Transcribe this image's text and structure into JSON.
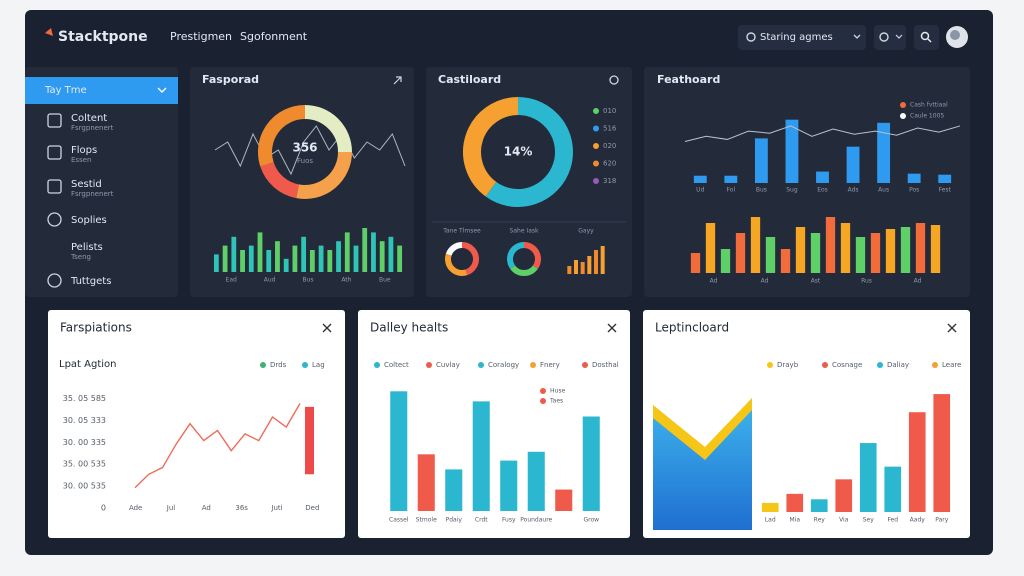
{
  "header": {
    "brand": "Stacktpone",
    "nav": [
      "Prestigmen",
      "Sgofonment"
    ],
    "search": "Staring agmes"
  },
  "sidebar": {
    "dropdown": "Tay Tme",
    "items": [
      {
        "label": "Coltent",
        "sub": "Fsrgpnenert"
      },
      {
        "label": "Flops",
        "sub": "Essen"
      },
      {
        "label": "Sestid",
        "sub": "Fsrgpnenert"
      },
      {
        "label": "Soplies"
      },
      {
        "label": "Pelists",
        "sub": "Tseng"
      },
      {
        "label": "Tuttgets"
      }
    ]
  },
  "top_panels": [
    {
      "title": "Fasporad",
      "donut": {
        "center": "356",
        "sub": "Fuos",
        "values": [
          25,
          28,
          17,
          30
        ],
        "colors": [
          "#e4ecc4",
          "#f5a04a",
          "#ef5a4a",
          "#f08a2e"
        ]
      },
      "line": {
        "values": [
          5,
          6,
          3,
          7,
          4,
          5,
          2,
          6,
          8,
          5,
          7,
          4,
          6,
          5,
          7,
          3
        ],
        "ylim": [
          0,
          10
        ]
      },
      "bars": {
        "values": [
          4,
          6,
          8,
          5,
          6,
          9,
          5,
          7,
          3,
          6,
          8,
          5,
          6,
          5,
          7,
          9,
          6,
          10,
          9,
          7,
          8,
          6
        ],
        "colors": [
          "#2ec4b6",
          "#5fd068"
        ],
        "ylim": [
          0,
          10
        ],
        "xlabels": [
          "Ead",
          "Aud",
          "Bus",
          "Ath",
          "Bue"
        ]
      }
    },
    {
      "title": "Castiloard",
      "donut": {
        "center": "14%",
        "values": [
          60,
          40
        ],
        "colors": [
          "#2bb7d0",
          "#f5a030"
        ]
      },
      "legend": [
        {
          "name": "010",
          "color": "#5fd068"
        },
        {
          "name": "516",
          "color": "#2f9bf0"
        },
        {
          "name": "020",
          "color": "#f5a030"
        },
        {
          "name": "620",
          "color": "#f08a2e"
        },
        {
          "name": "318",
          "color": "#9b59b6"
        }
      ],
      "minis": [
        {
          "type": "donut",
          "title": "Tane Tlmsee",
          "values": [
            45,
            35,
            20
          ],
          "colors": [
            "#ef5a4a",
            "#f5a030",
            "#ffffff"
          ]
        },
        {
          "type": "donut",
          "title": "Sahe Iask",
          "values": [
            35,
            30,
            35
          ],
          "colors": [
            "#ef5a4a",
            "#5fd068",
            "#2bb7d0"
          ]
        },
        {
          "type": "bar",
          "title": "Gayy",
          "values": [
            4,
            7,
            6,
            9,
            12,
            14
          ],
          "colors": [
            "#f08a2e",
            "#f5a030"
          ],
          "ylim": [
            0,
            15
          ]
        }
      ]
    },
    {
      "title": "Feathoard",
      "legend": [
        {
          "name": "Cash fvttiaal",
          "color": "#f26b3a"
        },
        {
          "name": "Caule 1005",
          "color": "#ffffff"
        }
      ],
      "bars": {
        "values": [
          7,
          7,
          43,
          61,
          11,
          35,
          58,
          9,
          8
        ],
        "colors": [
          "#2f9bf0"
        ],
        "ylim": [
          0,
          80
        ],
        "xlabels": [
          "Ud",
          "Fol",
          "Bus",
          "Sug",
          "Eos",
          "Ads",
          "Aus",
          "Pos",
          "Fest"
        ]
      },
      "line": {
        "values": [
          40,
          45,
          42,
          50,
          48,
          55,
          45,
          52,
          47,
          50,
          46,
          53,
          49,
          55
        ],
        "ylim": [
          0,
          80
        ]
      },
      "bars2": {
        "values": [
          10,
          25,
          12,
          20,
          28,
          18,
          12,
          23,
          20,
          28,
          25,
          18,
          20,
          22,
          23,
          25,
          24
        ],
        "colors": [
          "#f26b3a",
          "#f5a623",
          "#5fd068"
        ],
        "ylim": [
          0,
          30
        ],
        "xlabels": [
          "Ad",
          "Ad",
          "Ast",
          "Rus",
          "Ad"
        ]
      }
    }
  ],
  "bottom_panels": [
    {
      "title": "Farspiations",
      "subtitle": "Lpat Agtion",
      "legend": [
        {
          "name": "Drds",
          "color": "#3cb371"
        },
        {
          "name": "Lag",
          "color": "#2bb7d0"
        }
      ],
      "chart": {
        "values": [
          12,
          20,
          24,
          38,
          50,
          40,
          46,
          34,
          44,
          40,
          54,
          48,
          62
        ],
        "highlight": [
          20,
          60
        ],
        "ylim": [
          0,
          70
        ],
        "yticks": [
          {
            "value": 65,
            "label": "35. 05 585"
          },
          {
            "value": 52,
            "label": "30. 05 333"
          },
          {
            "value": 39,
            "label": "30. 00 335"
          },
          {
            "value": 26,
            "label": "35. 00 535"
          },
          {
            "value": 13,
            "label": "30. 00 535"
          },
          0
        ],
        "xlabels": [
          "Ade",
          "Jul",
          "Ad",
          "36s",
          "Juti",
          "Ded"
        ]
      }
    },
    {
      "title": "Dalley healts",
      "legend": [
        {
          "name": "Coltect",
          "color": "#2bb7d0"
        },
        {
          "name": "Cuvlay",
          "color": "#ef5a4a"
        },
        {
          "name": "Coralogy",
          "color": "#2bb7d0"
        },
        {
          "name": "Fnery",
          "color": "#f5a030"
        },
        {
          "name": "Dosthal",
          "color": "#ef5a4a"
        }
      ],
      "mini_legend": [
        {
          "name": "Huse",
          "color": "#ef5a4a"
        },
        {
          "name": "Taes",
          "color": "#ef5a4a"
        }
      ],
      "chart": {
        "values": [
          95,
          45,
          33,
          87,
          40,
          47,
          17,
          75
        ],
        "colors": [
          "#2bb7d0",
          "#ef5a4a",
          "#2bb7d0",
          "#2bb7d0",
          "#2bb7d0",
          "#2bb7d0",
          "#ef5a4a",
          "#2bb7d0"
        ],
        "categories": [
          "Cassel",
          "Stmole",
          "Pdaiy",
          "Crdt",
          "Fusy",
          "Poundaure",
          null,
          "Grow"
        ],
        "ylim": [
          0,
          100
        ]
      }
    },
    {
      "title": "Leptincloard",
      "legend": [
        {
          "name": "Drayb",
          "color": "#f5c518"
        },
        {
          "name": "Cosnage",
          "color": "#ef5a4a"
        },
        {
          "name": "Daliay",
          "color": "#2bb7d0"
        },
        {
          "name": "Leare",
          "color": "#f5a030"
        }
      ],
      "chart": {
        "values": [
          5,
          10,
          7,
          18,
          38,
          25,
          55,
          65
        ],
        "colors": [
          "#f5c518",
          "#ef5a4a",
          "#2bb7d0",
          "#ef5a4a",
          "#2bb7d0",
          "#2bb7d0",
          "#ef5a4a",
          "#ef5a4a"
        ],
        "categories": [
          "Lad",
          "Mia",
          "Rey",
          "Via",
          "Sey",
          "Fed",
          "Aady",
          "Pary"
        ],
        "ylim": [
          0,
          70
        ]
      }
    }
  ]
}
